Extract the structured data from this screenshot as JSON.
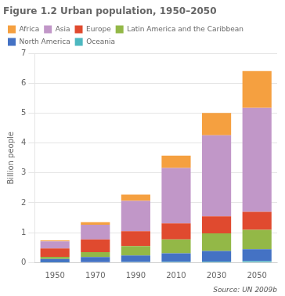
{
  "chart_data": {
    "type": "bar",
    "title": "Figure 1.2 Urban population, 1950–2050",
    "ylabel": "Billion people",
    "annotations": [
      "Source: UN 2009b"
    ],
    "categories": [
      "1950",
      "1970",
      "1990",
      "2010",
      "2030",
      "2050"
    ],
    "series": [
      {
        "name": "Oceania",
        "color": "#4db8c0",
        "values": [
          0.008,
          0.014,
          0.019,
          0.026,
          0.033,
          0.042
        ]
      },
      {
        "name": "North America",
        "color": "#4472c4",
        "values": [
          0.11,
          0.171,
          0.213,
          0.281,
          0.352,
          0.403
        ]
      },
      {
        "name": "Latin America and the Caribbean",
        "color": "#93b847",
        "values": [
          0.069,
          0.163,
          0.315,
          0.468,
          0.588,
          0.649
        ]
      },
      {
        "name": "Europe",
        "color": "#e04a2f",
        "values": [
          0.281,
          0.424,
          0.503,
          0.535,
          0.572,
          0.603
        ]
      },
      {
        "name": "Asia",
        "color": "#c197c8",
        "values": [
          0.237,
          0.492,
          1.018,
          1.856,
          2.718,
          3.486
        ]
      },
      {
        "name": "Africa",
        "color": "#f5a040",
        "values": [
          0.033,
          0.087,
          0.204,
          0.414,
          0.748,
          1.233
        ]
      }
    ],
    "stacked": true,
    "ylim": [
      0,
      7
    ],
    "yticks": [
      0,
      1,
      2,
      3,
      4,
      5,
      6,
      7
    ],
    "grid": true,
    "legend": "upper left"
  }
}
